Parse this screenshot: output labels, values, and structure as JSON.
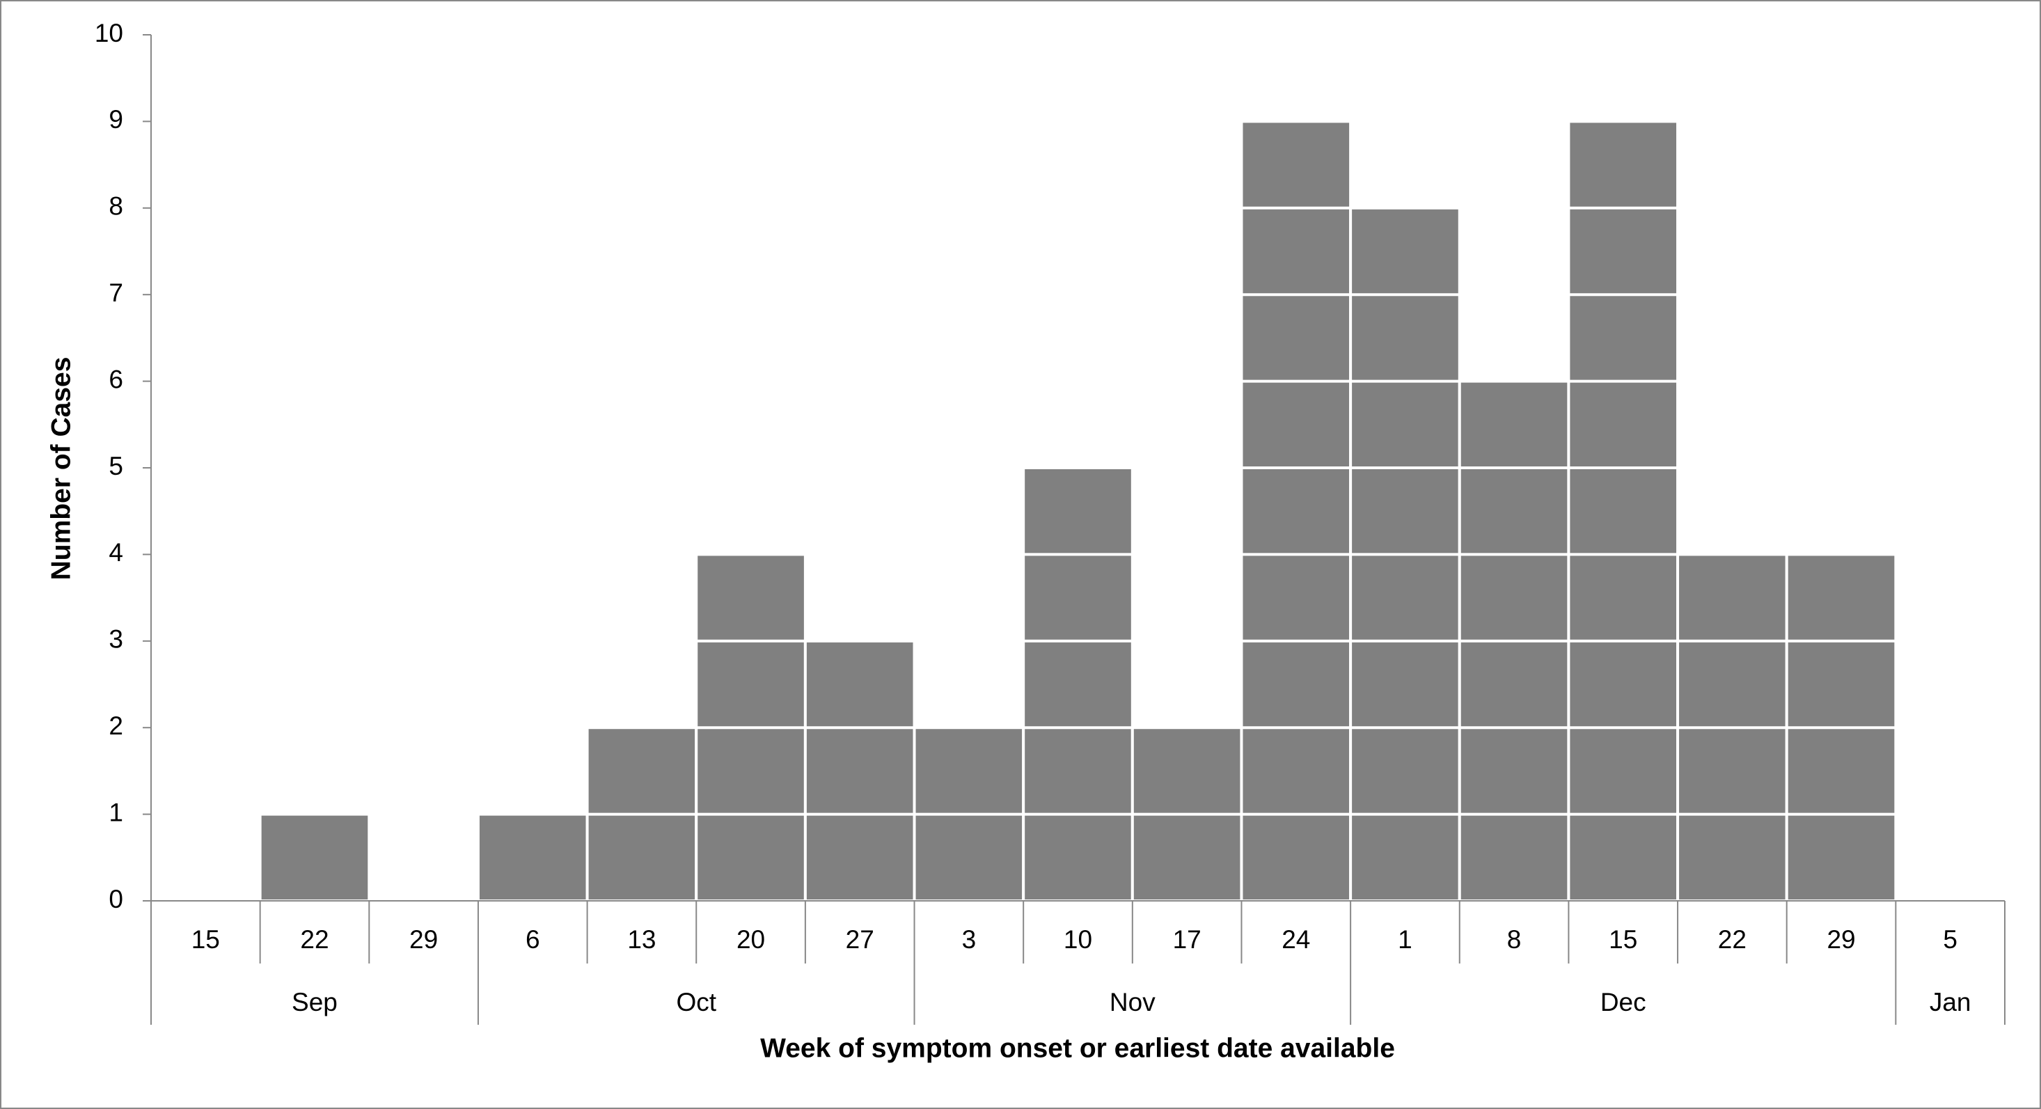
{
  "chart_data": {
    "type": "bar",
    "x_label": "Week of symptom onset or earliest date available",
    "y_label": "Number of Cases",
    "categories": [
      "15",
      "22",
      "29",
      "6",
      "13",
      "20",
      "27",
      "3",
      "10",
      "17",
      "24",
      "1",
      "8",
      "15",
      "22",
      "29",
      "5"
    ],
    "months": [
      "Sep",
      "Oct",
      "Nov",
      "Dec",
      "Jan"
    ],
    "values": [
      0,
      1,
      0,
      1,
      2,
      4,
      3,
      2,
      5,
      2,
      9,
      8,
      6,
      9,
      4,
      4,
      0
    ],
    "color": "#808080",
    "ylim": [
      0,
      10
    ],
    "yticks": [
      0,
      1,
      2,
      3,
      4,
      5,
      6,
      7,
      8,
      9,
      10
    ],
    "grid": false
  }
}
